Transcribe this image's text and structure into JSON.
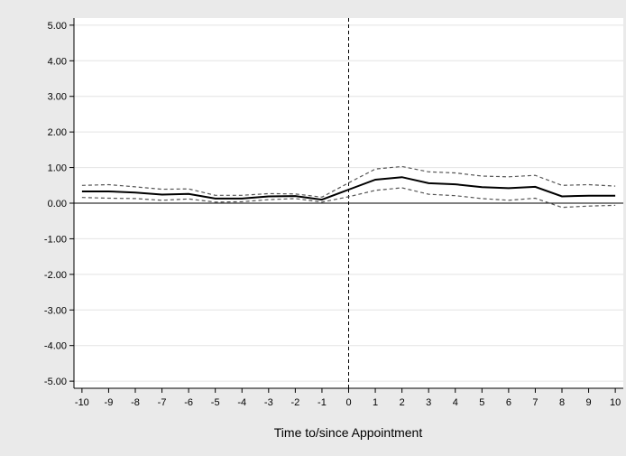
{
  "chart_data": {
    "type": "line",
    "xlabel": "Time to/since Appointment",
    "ylabel": "",
    "title": "",
    "x": [
      -10,
      -9,
      -8,
      -7,
      -6,
      -5,
      -4,
      -3,
      -2,
      -1,
      0,
      1,
      2,
      3,
      4,
      5,
      6,
      7,
      8,
      9,
      10
    ],
    "xlim": [
      -10.3,
      10.3
    ],
    "ylim": [
      -5.2,
      5.2
    ],
    "yticks": [
      5.0,
      4.0,
      3.0,
      2.0,
      1.0,
      0.0,
      -1.0,
      -2.0,
      -3.0,
      -4.0,
      -5.0
    ],
    "ytick_labels": [
      "5.00",
      "4.00",
      "3.00",
      "2.00",
      "1.00",
      "0.00",
      "-1.00",
      "-2.00",
      "-3.00",
      "-4.00",
      "-5.00"
    ],
    "xtick_labels": [
      "-10",
      "-9",
      "-8",
      "-7",
      "-6",
      "-5",
      "-4",
      "-3",
      "-2",
      "-1",
      "0",
      "1",
      "2",
      "3",
      "4",
      "5",
      "6",
      "7",
      "8",
      "9",
      "10"
    ],
    "grid": "horizontal",
    "reference_lines": {
      "horizontal_at": 0,
      "vertical_at": 0
    },
    "series": [
      {
        "role": "estimate",
        "style": "solid",
        "color": "#000000",
        "values": [
          0.33,
          0.33,
          0.3,
          0.24,
          0.26,
          0.13,
          0.13,
          0.19,
          0.2,
          0.1,
          0.38,
          0.66,
          0.73,
          0.56,
          0.53,
          0.45,
          0.42,
          0.46,
          0.19,
          0.21,
          0.21
        ]
      },
      {
        "role": "upper-ci",
        "style": "dashed",
        "color": "#555555",
        "values": [
          0.5,
          0.52,
          0.46,
          0.39,
          0.4,
          0.22,
          0.22,
          0.27,
          0.26,
          0.17,
          0.57,
          0.96,
          1.03,
          0.88,
          0.85,
          0.76,
          0.74,
          0.78,
          0.5,
          0.52,
          0.48
        ]
      },
      {
        "role": "lower-ci",
        "style": "dashed",
        "color": "#555555",
        "values": [
          0.16,
          0.14,
          0.13,
          0.08,
          0.12,
          0.03,
          0.04,
          0.1,
          0.13,
          0.03,
          0.18,
          0.36,
          0.43,
          0.25,
          0.21,
          0.13,
          0.08,
          0.14,
          -0.12,
          -0.08,
          -0.06
        ]
      }
    ]
  }
}
